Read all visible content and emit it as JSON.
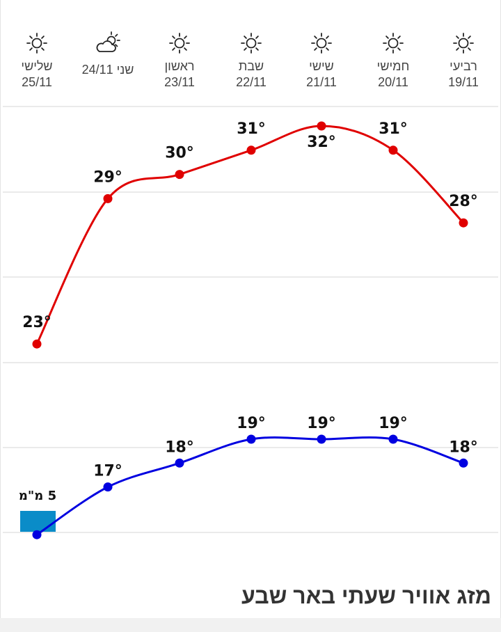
{
  "page_title": "מזג אוויר שעתי באר שבע",
  "days": [
    {
      "name": "רביעי",
      "date": "19/11",
      "icon": "sun-icon"
    },
    {
      "name": "חמישי",
      "date": "20/11",
      "icon": "sun-icon"
    },
    {
      "name": "שישי",
      "date": "21/11",
      "icon": "sun-icon"
    },
    {
      "name": "שבת",
      "date": "22/11",
      "icon": "sun-icon"
    },
    {
      "name": "ראשון",
      "date": "23/11",
      "icon": "sun-icon"
    },
    {
      "name": "שני",
      "date": "24/11",
      "icon": "partly-cloudy-icon"
    },
    {
      "name": "שלישי",
      "date": "25/11",
      "icon": "sun-icon"
    }
  ],
  "chart_data": {
    "type": "line",
    "categories": [
      "19/11",
      "20/11",
      "21/11",
      "22/11",
      "23/11",
      "24/11",
      "25/11"
    ],
    "series": [
      {
        "name": "",
        "color": "#e00000",
        "values": [
          28,
          31,
          32,
          31,
          30,
          29,
          23
        ],
        "labels": [
          "28°",
          "31°",
          "32°",
          "31°",
          "30°",
          "29°",
          "23°"
        ]
      },
      {
        "name": "",
        "color": "#0000e0",
        "values": [
          18,
          19,
          19,
          19,
          18,
          17,
          15
        ],
        "labels": [
          "18°",
          "19°",
          "19°",
          "19°",
          "18°",
          "17°",
          ""
        ]
      }
    ],
    "rain": [
      {
        "category": "25/11",
        "label": "5 מ\"מ",
        "color": "#0a8cc8"
      }
    ],
    "grid": true,
    "x_direction": "right-to-left"
  }
}
